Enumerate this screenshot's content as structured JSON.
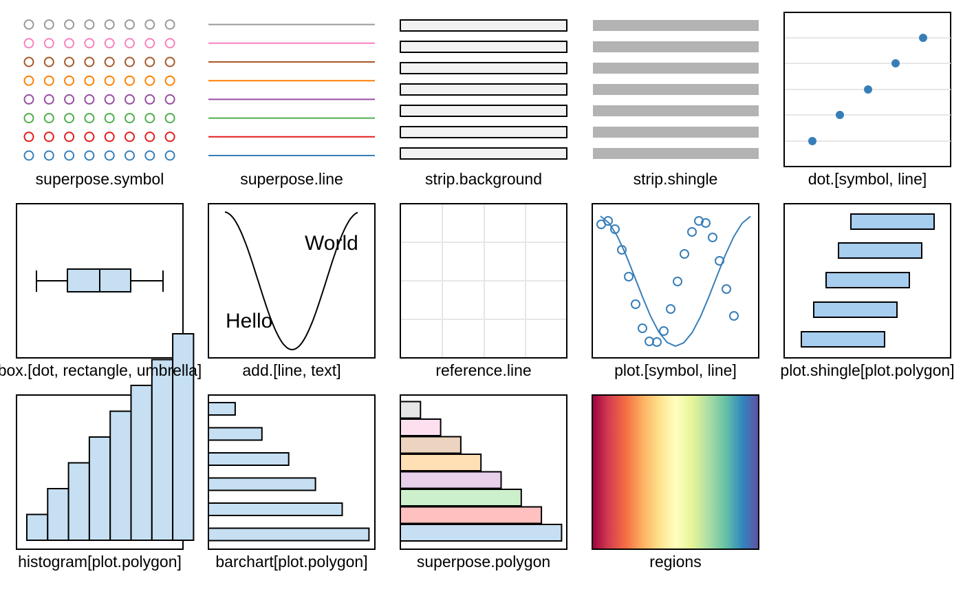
{
  "panels": {
    "superpose_symbol": "superpose.symbol",
    "superpose_line": "superpose.line",
    "strip_background": "strip.background",
    "strip_shingle": "strip.shingle",
    "dot": "dot.[symbol, line]",
    "box": "box.[dot, rectangle, umbrella]",
    "add": "add.[line, text]",
    "reference_line": "reference.line",
    "plot": "plot.[symbol, line]",
    "plot_shingle": "plot.shingle[plot.polygon]",
    "histogram": "histogram[plot.polygon]",
    "barchart": "barchart[plot.polygon]",
    "superpose_polygon": "superpose.polygon",
    "regions": "regions"
  },
  "add_text": {
    "hello": "Hello",
    "world": "World"
  },
  "colors": {
    "superpose": [
      "#377eb8",
      "#e41a1c",
      "#4daf4a",
      "#984ea3",
      "#ff7f00",
      "#a65628",
      "#f781bf",
      "#999999"
    ],
    "polygon_fills": [
      "#c6dff2",
      "#ffc0c0",
      "#ccf0cc",
      "#e6d0ea",
      "#ffe0b4",
      "#ecd4c0",
      "#fde0f0",
      "#e6e6e6"
    ],
    "strip_background": "#f2f2f2",
    "strip_shingle": "#b3b3b3",
    "plot_fill": "#c6dff2",
    "shingle_fill": "#a7cdef",
    "reference_line": "#e6e6e6",
    "regions": [
      "#9e0142",
      "#d53e4f",
      "#f46d43",
      "#fdae61",
      "#fee08b",
      "#ffffbf",
      "#e6f598",
      "#abdda4",
      "#66c2a5",
      "#3288bd",
      "#5e4fa2"
    ]
  },
  "chart_data": [
    {
      "type": "scatter",
      "title": "superpose.symbol",
      "rows": 8,
      "cols": 8
    },
    {
      "type": "line",
      "title": "superpose.line",
      "series_count": 8
    },
    {
      "type": "bar",
      "title": "strip.background",
      "values": [
        1,
        1,
        1,
        1,
        1,
        1,
        1
      ]
    },
    {
      "type": "bar",
      "title": "strip.shingle",
      "values": [
        1,
        1,
        1,
        1,
        1,
        1,
        1
      ]
    },
    {
      "type": "scatter",
      "title": "dot.[symbol, line]",
      "x": [
        1,
        2,
        3,
        4,
        5
      ],
      "y": [
        1,
        2,
        3,
        4,
        5
      ]
    },
    {
      "type": "table",
      "title": "box.[dot, rectangle, umbrella]",
      "min": 0,
      "q1": 1,
      "median": 2,
      "q3": 3,
      "max": 4
    },
    {
      "type": "line",
      "title": "add.[line, text]"
    },
    {
      "type": "table",
      "title": "reference.line"
    },
    {
      "type": "scatter",
      "title": "plot.[symbol, line]"
    },
    {
      "type": "bar",
      "title": "plot.shingle[plot.polygon]",
      "intervals": [
        [
          0,
          2
        ],
        [
          0.3,
          2.3
        ],
        [
          0.6,
          2.6
        ],
        [
          0.9,
          2.9
        ],
        [
          1.2,
          3.2
        ]
      ]
    },
    {
      "type": "bar",
      "title": "histogram[plot.polygon]",
      "values": [
        1,
        2,
        3,
        4,
        5,
        6,
        7,
        8
      ]
    },
    {
      "type": "bar",
      "title": "barchart[plot.polygon]",
      "values": [
        1,
        2,
        3,
        4,
        5,
        6
      ]
    },
    {
      "type": "bar",
      "title": "superpose.polygon",
      "values": [
        8,
        7,
        6,
        5,
        4,
        3,
        2,
        1
      ]
    },
    {
      "type": "heatmap",
      "title": "regions"
    }
  ]
}
